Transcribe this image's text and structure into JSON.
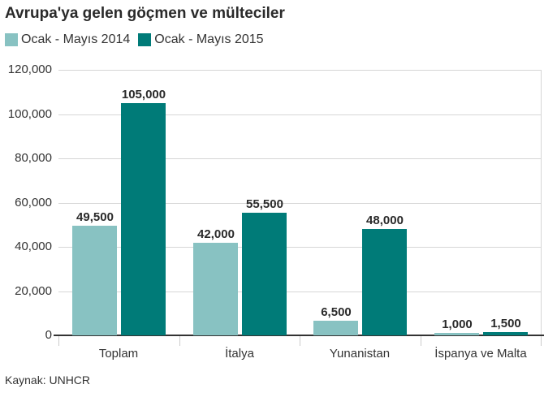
{
  "colors": {
    "y2014": "#88c2c2",
    "y2015": "#007b78"
  },
  "chart_data": {
    "type": "bar",
    "title": "Avrupa'ya gelen göçmen ve mülteciler",
    "categories": [
      "Toplam",
      "İtalya",
      "Yunanistan",
      "İspanya ve Malta"
    ],
    "series": [
      {
        "name": "Ocak - Mayıs 2014",
        "values": [
          49500,
          42000,
          6500,
          1000
        ],
        "labels": [
          "49,500",
          "42,000",
          "6,500",
          "1,000"
        ]
      },
      {
        "name": "Ocak - Mayıs 2015",
        "values": [
          105000,
          55500,
          48000,
          1500
        ],
        "labels": [
          "105,000",
          "55,500",
          "48,000",
          "1,500"
        ]
      }
    ],
    "xlabel": "",
    "ylabel": "",
    "ylim": [
      0,
      120000
    ],
    "yticks": [
      "0",
      "20,000",
      "40,000",
      "60,000",
      "80,000",
      "100,000",
      "120,000"
    ],
    "grid": true,
    "legend_position": "top-left",
    "source": "Kaynak: UNHCR"
  }
}
